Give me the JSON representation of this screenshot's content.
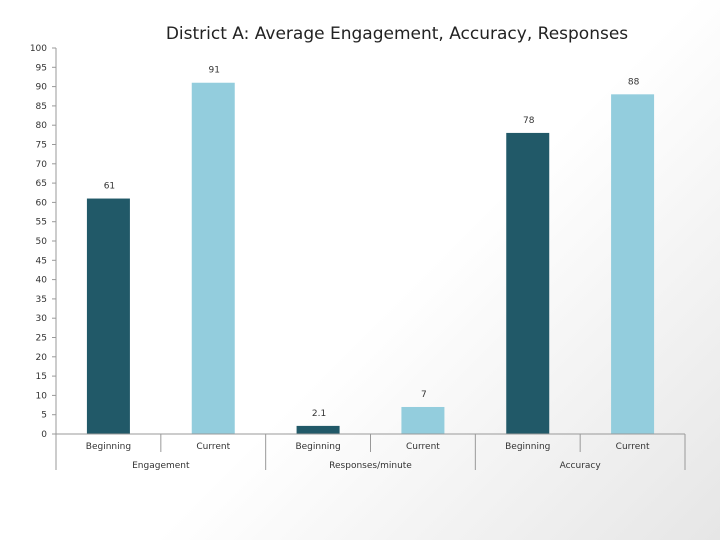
{
  "chart_data": {
    "type": "bar",
    "title": "District A: Average Engagement, Accuracy, Responses",
    "xlabel": "",
    "ylabel": "",
    "ylim": [
      0,
      100
    ],
    "ytick_step": 5,
    "groups": [
      "Engagement",
      "Responses/minute",
      "Accuracy"
    ],
    "categories": [
      "Beginning",
      "Current"
    ],
    "bars": [
      {
        "group": "Engagement",
        "category": "Beginning",
        "value": 61,
        "label": "61"
      },
      {
        "group": "Engagement",
        "category": "Current",
        "value": 91,
        "label": "91"
      },
      {
        "group": "Responses/minute",
        "category": "Beginning",
        "value": 2.1,
        "label": "2.1"
      },
      {
        "group": "Responses/minute",
        "category": "Current",
        "value": 7,
        "label": "7"
      },
      {
        "group": "Accuracy",
        "category": "Beginning",
        "value": 78,
        "label": "78"
      },
      {
        "group": "Accuracy",
        "category": "Current",
        "value": 88,
        "label": "88"
      }
    ],
    "colors": {
      "Beginning": "#215968",
      "Current": "#93cddd"
    },
    "grid": false,
    "legend": "none"
  }
}
